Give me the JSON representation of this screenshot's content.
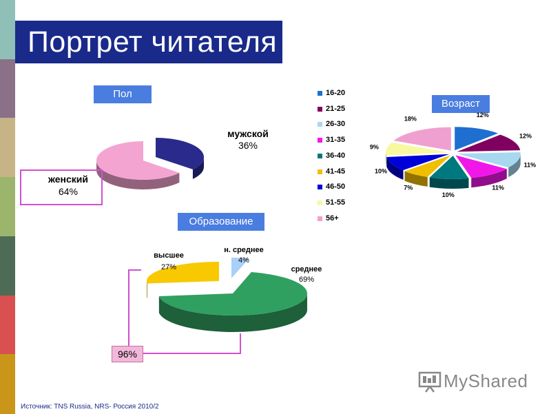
{
  "slide": {
    "title": "Портрет читателя",
    "source": "Источник: TNS Russia, NRS- Россия 2010/2",
    "logo_text": "MyShared",
    "combined_percent": "96%",
    "stripe_colors": [
      "#8fbfb6",
      "#8a7187",
      "#c7b486",
      "#9cb56c",
      "#4e6b56",
      "#d95050",
      "#c9961a"
    ]
  },
  "chart_data": [
    {
      "type": "pie",
      "title": "Пол",
      "slices": [
        {
          "label": "мужской",
          "value": 36,
          "display": "36%",
          "color": "#2a2a8c"
        },
        {
          "label": "женский",
          "value": 64,
          "display": "64%",
          "color": "#f4a4d0"
        }
      ]
    },
    {
      "type": "pie",
      "title": "Возраст",
      "slices": [
        {
          "label": "16-20",
          "value": 12,
          "display": "12%",
          "color": "#1e6fd0"
        },
        {
          "label": "21-25",
          "value": 12,
          "display": "12%",
          "color": "#800060"
        },
        {
          "label": "26-30",
          "value": 11,
          "display": "11%",
          "color": "#a8d8f0"
        },
        {
          "label": "31-35",
          "value": 11,
          "display": "11%",
          "color": "#f018e8"
        },
        {
          "label": "36-40",
          "value": 10,
          "display": "10%",
          "color": "#007880"
        },
        {
          "label": "41-45",
          "value": 7,
          "display": "7%",
          "color": "#f0c000"
        },
        {
          "label": "46-50",
          "value": 10,
          "display": "10%",
          "color": "#0000d8"
        },
        {
          "label": "51-55",
          "value": 9,
          "display": "9%",
          "color": "#f8f8a0"
        },
        {
          "label": "56+",
          "value": 18,
          "display": "18%",
          "color": "#f0a0d0"
        }
      ]
    },
    {
      "type": "pie",
      "title": "Образование",
      "slices": [
        {
          "label": "н. среднее",
          "value": 4,
          "display": "4%",
          "color": "#a8d0f8"
        },
        {
          "label": "среднее",
          "value": 69,
          "display": "69%",
          "color": "#30a060"
        },
        {
          "label": "высшее",
          "value": 27,
          "display": "27%",
          "color": "#f8c800"
        }
      ]
    }
  ]
}
